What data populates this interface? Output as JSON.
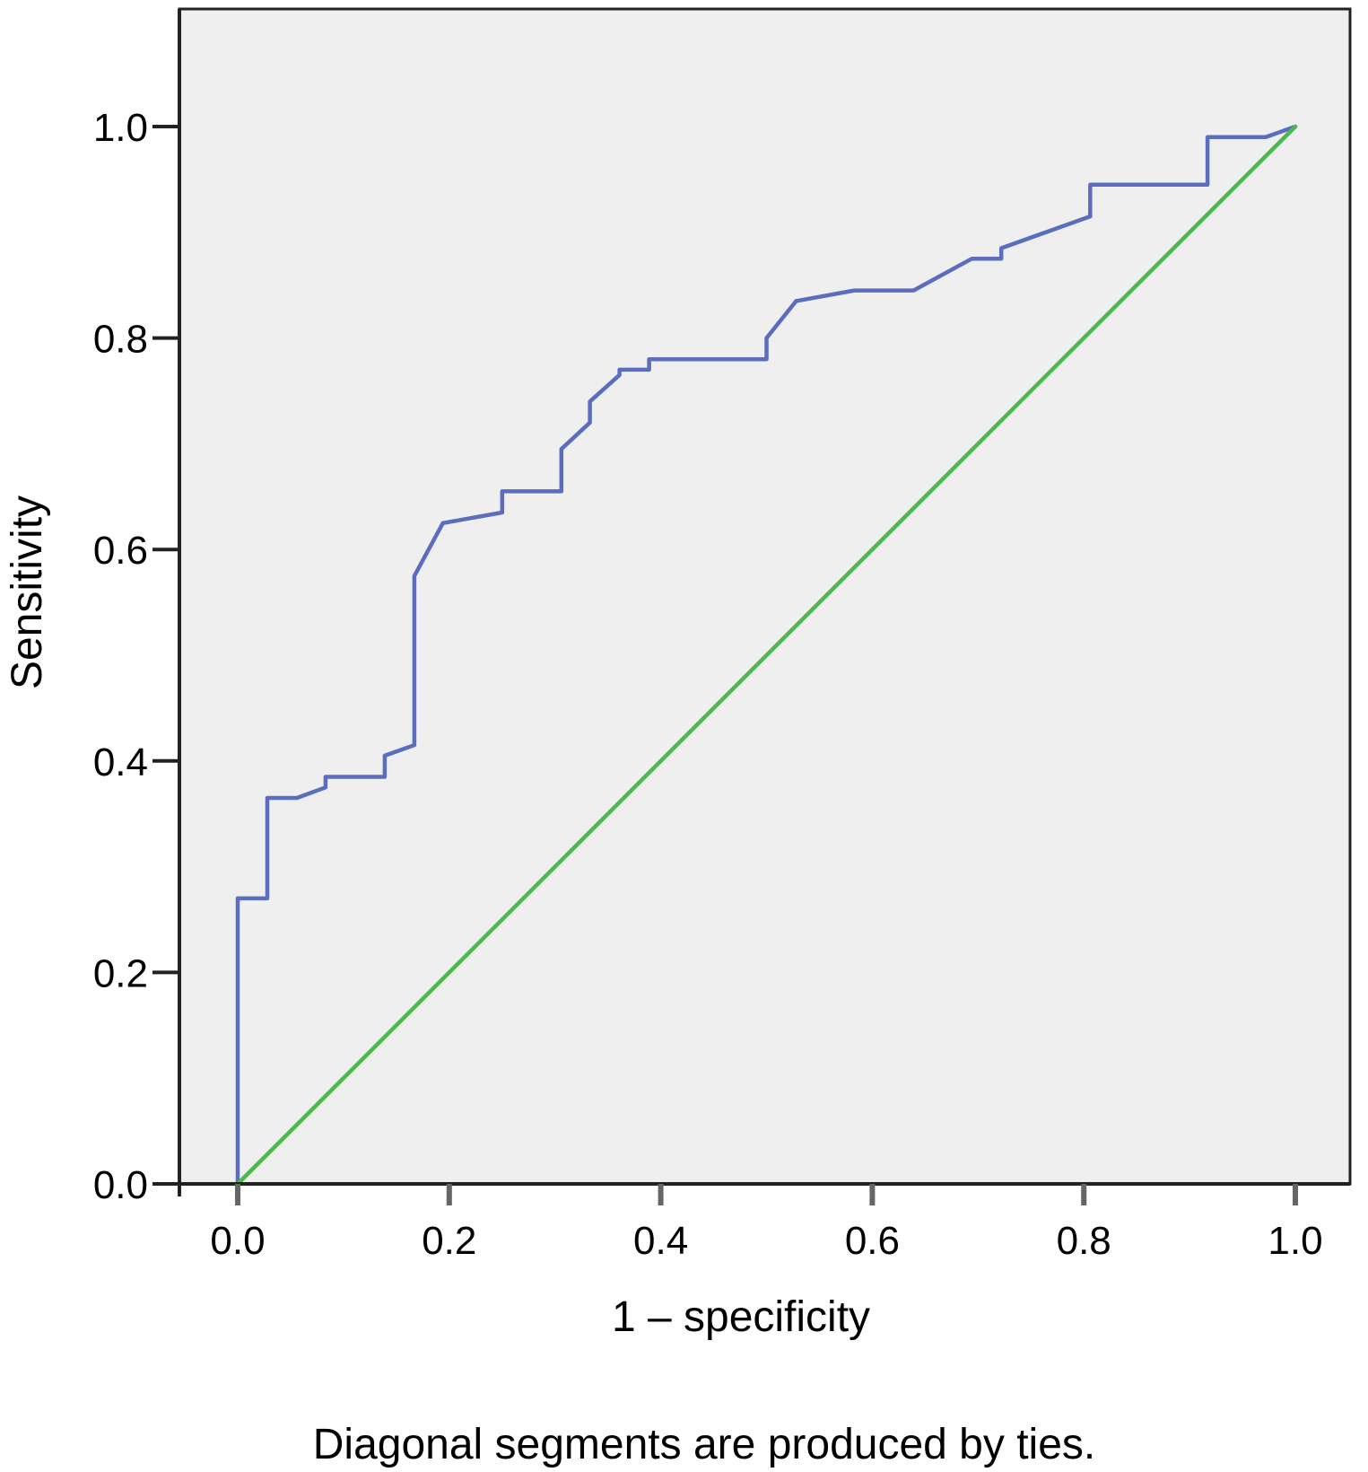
{
  "chart_data": {
    "type": "line",
    "title": "",
    "xlabel": "1 – specificity",
    "ylabel": "Sensitivity",
    "footnote": "Diagonal segments are produced by ties.",
    "xlim": [
      -0.057,
      1.057
    ],
    "ylim": [
      0.0,
      1.11
    ],
    "x_ticks": [
      "0.0",
      "0.2",
      "0.4",
      "0.6",
      "0.8",
      "1.0"
    ],
    "y_ticks": [
      "0.0",
      "0.2",
      "0.4",
      "0.6",
      "0.8",
      "1.0"
    ],
    "grid": false,
    "plot_background": "#efefef",
    "series": [
      {
        "color": "#5b6dbf",
        "x": [
          0.0,
          0.0,
          0.028,
          0.028,
          0.056,
          0.083,
          0.083,
          0.139,
          0.139,
          0.167,
          0.167,
          0.194,
          0.25,
          0.25,
          0.306,
          0.306,
          0.333,
          0.333,
          0.361,
          0.361,
          0.389,
          0.389,
          0.5,
          0.5,
          0.528,
          0.583,
          0.639,
          0.694,
          0.722,
          0.722,
          0.806,
          0.806,
          0.917,
          0.917,
          0.972,
          1.0
        ],
        "y": [
          0.0,
          0.27,
          0.27,
          0.365,
          0.365,
          0.375,
          0.385,
          0.385,
          0.405,
          0.415,
          0.575,
          0.625,
          0.635,
          0.655,
          0.655,
          0.695,
          0.72,
          0.74,
          0.765,
          0.77,
          0.77,
          0.78,
          0.78,
          0.8,
          0.835,
          0.845,
          0.845,
          0.875,
          0.875,
          0.885,
          0.915,
          0.945,
          0.945,
          0.99,
          0.99,
          1.0
        ]
      },
      {
        "color": "#4cb94c",
        "x": [
          0.0,
          1.0
        ],
        "y": [
          0.0,
          1.0
        ]
      }
    ]
  }
}
